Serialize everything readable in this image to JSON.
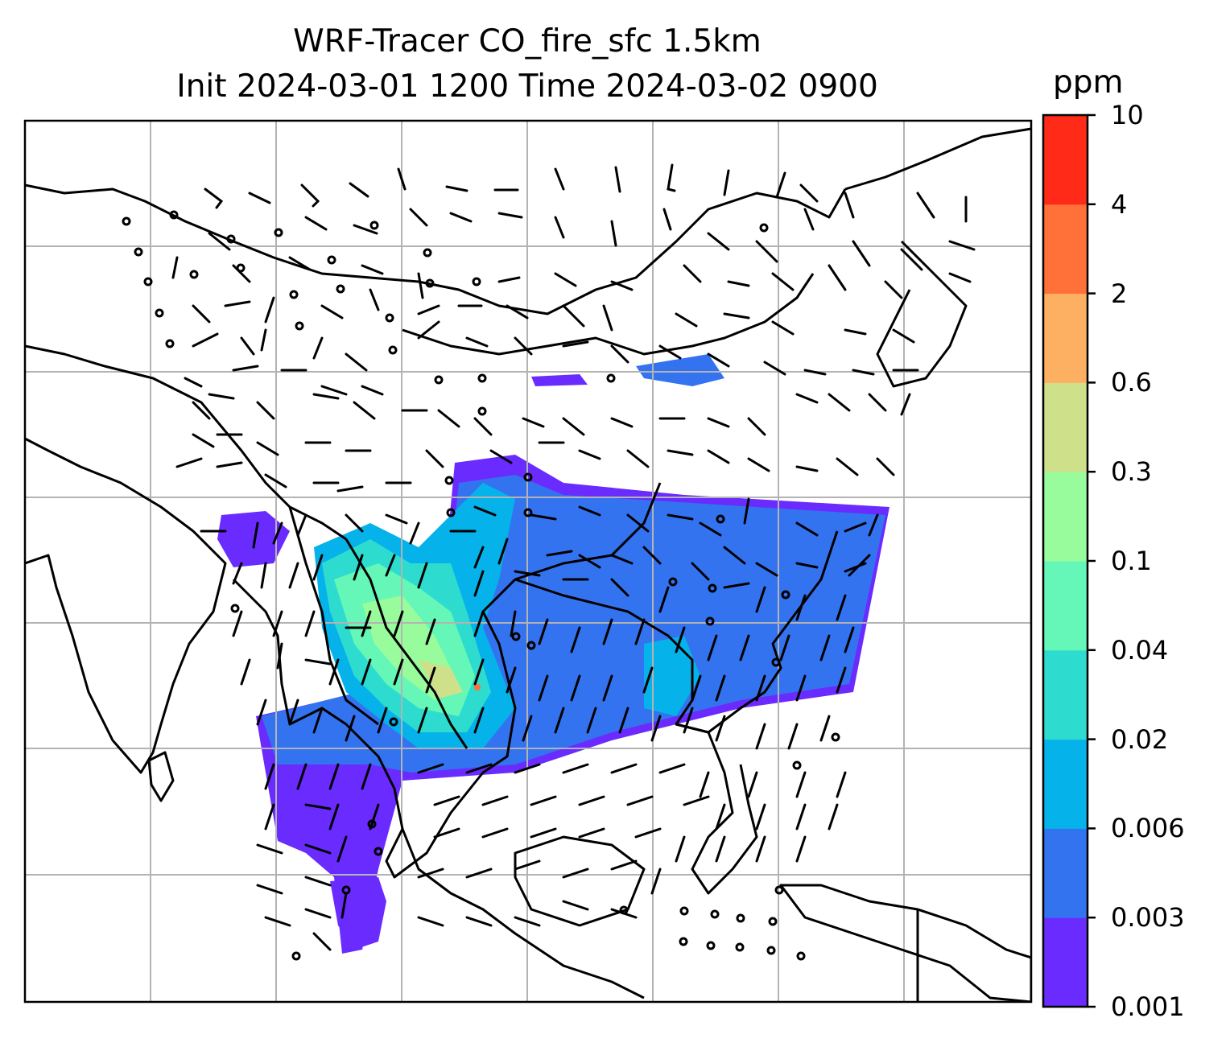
{
  "title": {
    "line1": "WRF-Tracer CO_fire_sfc 1.5km",
    "line2": "Init 2024-03-01 1200 Time 2024-03-02 0900"
  },
  "colorbar": {
    "unit": "ppm",
    "levels": [
      "0.001",
      "0.003",
      "0.006",
      "0.02",
      "0.04",
      "0.1",
      "0.3",
      "0.6",
      "2",
      "4",
      "10"
    ],
    "colors": [
      "#6a2bff",
      "#3473f0",
      "#06b2ea",
      "#2edccf",
      "#64f7b7",
      "#98fb9c",
      "#cfe08a",
      "#fdb062",
      "#ff7139",
      "#ff2a17"
    ]
  },
  "map": {
    "frame_color": "#000000",
    "gridline_color": "#b3b3b3",
    "coastline_color": "#000000",
    "wind_barbs": "black",
    "contour_field": "CO_fire_sfc"
  }
}
